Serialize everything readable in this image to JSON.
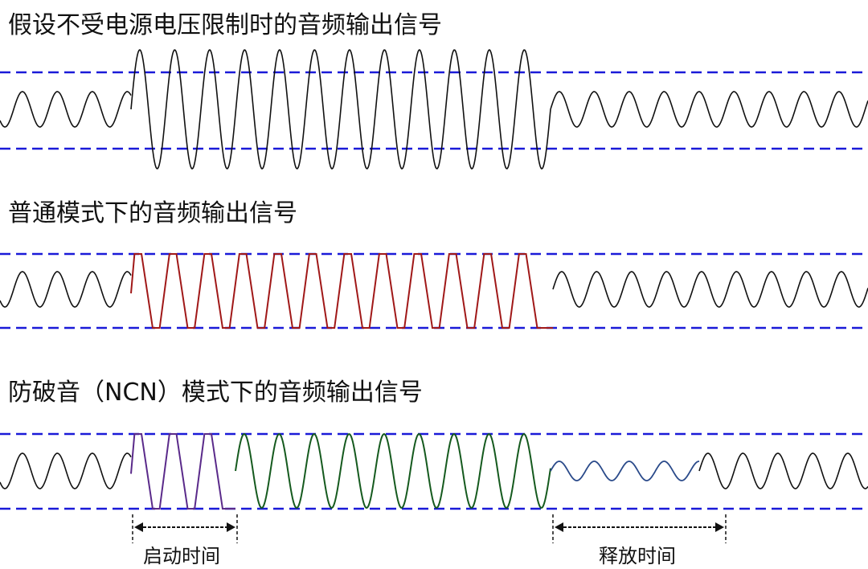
{
  "panels": [
    {
      "title": "假设不受电源电压限制时的音频输出信号"
    },
    {
      "title": "普通模式下的音频输出信号"
    },
    {
      "title": "防破音（NCN）模式下的音频输出信号"
    }
  ],
  "annotations": {
    "attack_time": "启动时间",
    "release_time": "释放时间"
  },
  "colors": {
    "limit_line": "#1a1ad8",
    "signal": "#111111",
    "clipped": "#a01818",
    "attack": "#5a2a8a",
    "ncn_sustain": "#155a1e",
    "ncn_release": "#2a4a8a"
  }
}
